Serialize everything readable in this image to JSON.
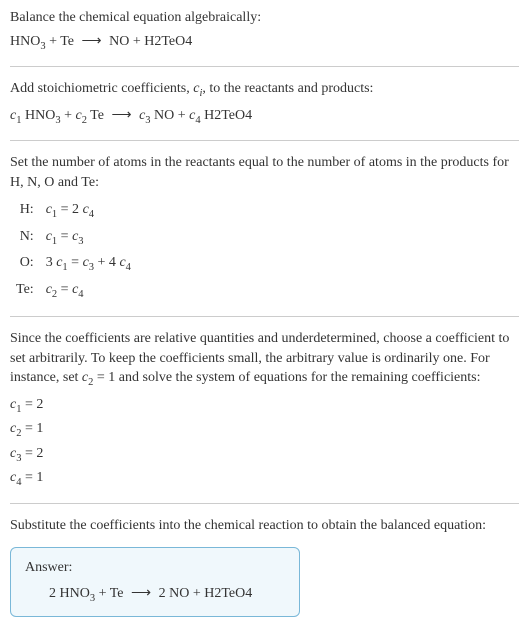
{
  "problem": {
    "intro": "Balance the chemical equation algebraically:",
    "equation_lhs_1": "HNO",
    "equation_lhs_1_sub": "3",
    "equation_plus_1": " + Te ",
    "arrow": " ⟶ ",
    "equation_rhs": " NO + H2TeO4"
  },
  "step1": {
    "intro_a": "Add stoichiometric coefficients, ",
    "ci": "c",
    "ci_sub": "i",
    "intro_b": ", to the reactants and products:",
    "c1": "c",
    "c1s": "1",
    "sp1": " HNO",
    "sp1s": "3",
    "plus1": " + ",
    "c2": "c",
    "c2s": "2",
    "sp2": " Te ",
    "c3": "c",
    "c3s": "3",
    "sp3": " NO + ",
    "c4": "c",
    "c4s": "4",
    "sp4": " H2TeO4"
  },
  "step2": {
    "intro": "Set the number of atoms in the reactants equal to the number of atoms in the products for H, N, O and Te:",
    "rows": {
      "H": {
        "el": "H:",
        "eq_a": "c",
        "eq_as": "1",
        "eq_mid": " = 2 ",
        "eq_b": "c",
        "eq_bs": "4"
      },
      "N": {
        "el": "N:",
        "eq_a": "c",
        "eq_as": "1",
        "eq_mid": " = ",
        "eq_b": "c",
        "eq_bs": "3"
      },
      "O": {
        "el": "O:",
        "pre": "3 ",
        "eq_a": "c",
        "eq_as": "1",
        "eq_mid": " = ",
        "eq_b": "c",
        "eq_bs": "3",
        "plus": " + 4 ",
        "eq_c": "c",
        "eq_cs": "4"
      },
      "Te": {
        "el": "Te:",
        "eq_a": "c",
        "eq_as": "2",
        "eq_mid": " = ",
        "eq_b": "c",
        "eq_bs": "4"
      }
    }
  },
  "step3": {
    "text_a": "Since the coefficients are relative quantities and underdetermined, choose a coefficient to set arbitrarily. To keep the coefficients small, the arbitrary value is ordinarily one. For instance, set ",
    "cv": "c",
    "cvs": "2",
    "text_b": " = 1 and solve the system of equations for the remaining coefficients:",
    "c1": "c",
    "c1s": "1",
    "c1v": " = 2",
    "c2": "c",
    "c2s": "2",
    "c2v": " = 1",
    "c3": "c",
    "c3s": "3",
    "c3v": " = 2",
    "c4": "c",
    "c4s": "4",
    "c4v": " = 1"
  },
  "step4": {
    "text": "Substitute the coefficients into the chemical reaction to obtain the balanced equation:"
  },
  "answer": {
    "label": "Answer:",
    "lhs_a": "2 HNO",
    "lhs_as": "3",
    "lhs_plus": " + Te ",
    "arrow": " ⟶ ",
    "rhs": " 2 NO + H2TeO4"
  },
  "colors": {
    "text": "#333333",
    "divider": "#cccccc",
    "box_border": "#7ab8d8",
    "box_bg": "#f0f8fc"
  }
}
